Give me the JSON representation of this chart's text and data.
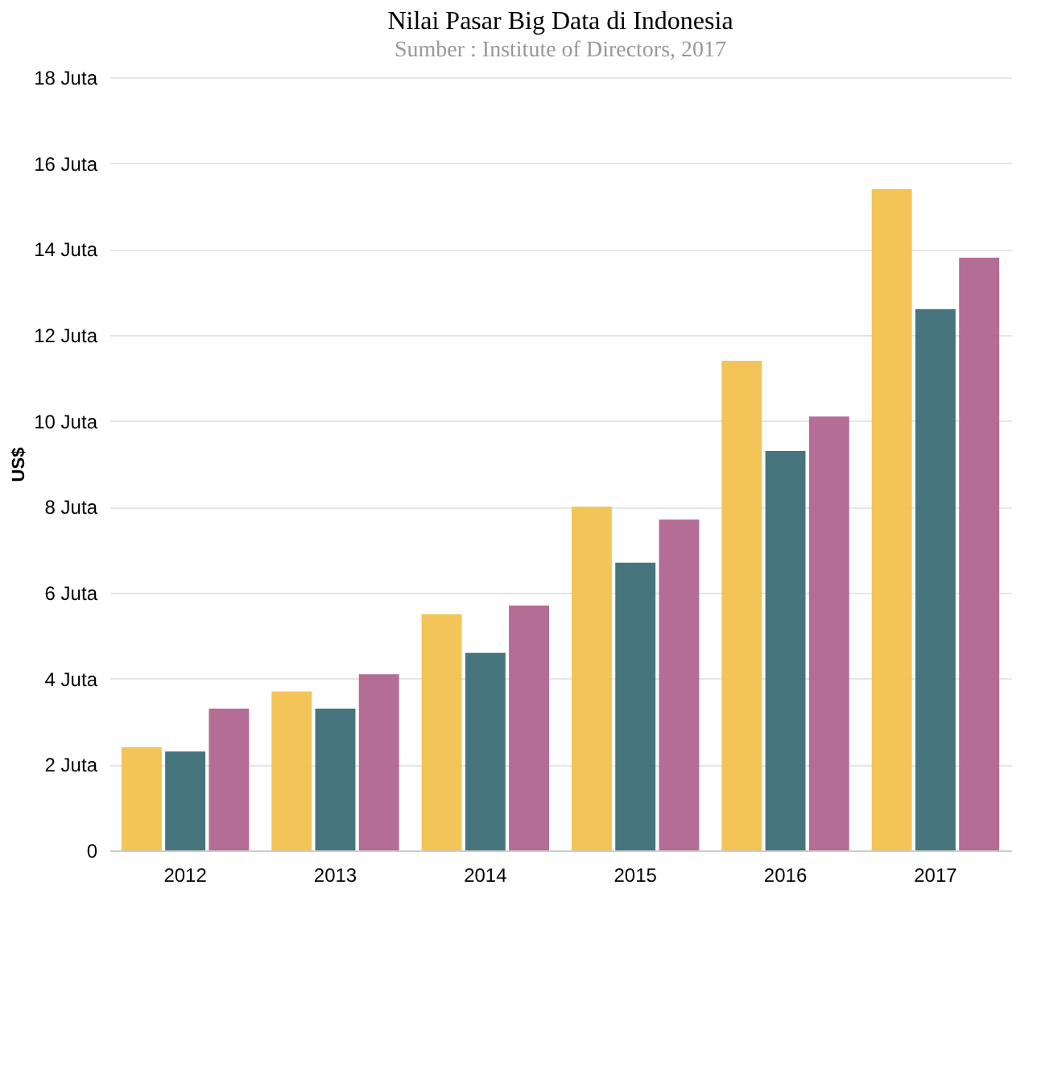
{
  "chart_data": {
    "type": "bar",
    "title": "Nilai Pasar Big Data di Indonesia",
    "subtitle": "Sumber : Institute of Directors, 2017",
    "ylabel": "US$",
    "categories": [
      "2012",
      "2013",
      "2014",
      "2015",
      "2016",
      "2017"
    ],
    "series": [
      {
        "color": "#f2c14e",
        "values": [
          2.4,
          3.7,
          5.5,
          8.0,
          11.4,
          15.4
        ]
      },
      {
        "color": "#3d6e76",
        "values": [
          2.3,
          3.3,
          4.6,
          6.7,
          9.3,
          12.6
        ]
      },
      {
        "color": "#b0658f",
        "values": [
          3.3,
          4.1,
          5.7,
          7.7,
          10.1,
          13.8
        ]
      }
    ],
    "ylim": [
      0,
      18
    ],
    "yticks": [
      0,
      {
        "value": 2,
        "label": "2 Juta"
      },
      {
        "value": 4,
        "label": "4 Juta"
      },
      {
        "value": 6,
        "label": "6 Juta"
      },
      {
        "value": 8,
        "label": "8 Juta"
      },
      {
        "value": 10,
        "label": "10 Juta"
      },
      {
        "value": 12,
        "label": "12 Juta"
      },
      {
        "value": 14,
        "label": "14 Juta"
      },
      {
        "value": 16,
        "label": "16 Juta"
      },
      {
        "value": 18,
        "label": "18 Juta"
      }
    ],
    "grid": "y",
    "legend": false
  }
}
